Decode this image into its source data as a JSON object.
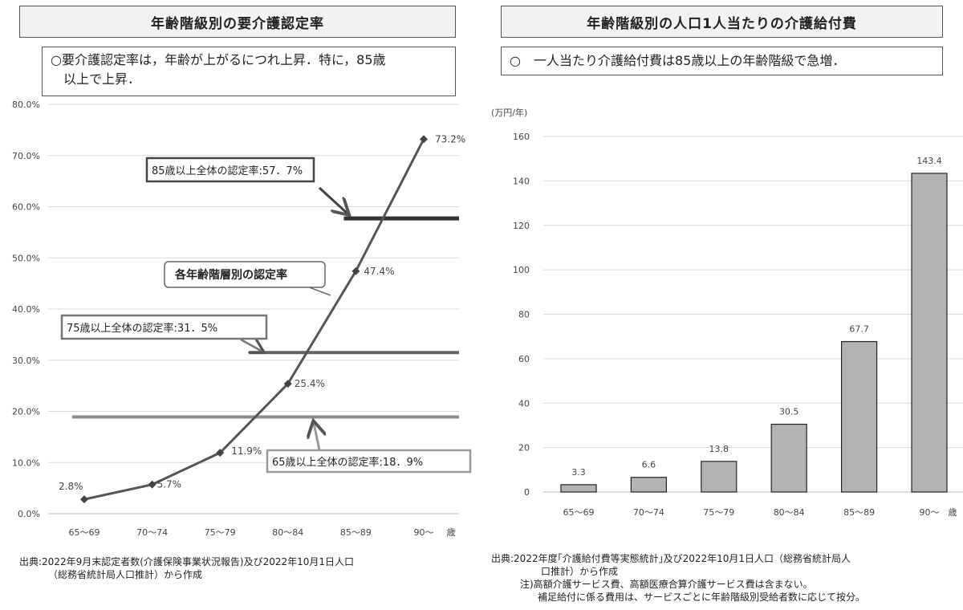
{
  "left": {
    "title": "年齢階級別の要介護認定率",
    "summary_line1": "○要介護認定率は，年齢が上がるにつれ上昇．特に，85歳",
    "summary_line2": "以上で上昇．",
    "annotations": {
      "over85": "85歳以上全体の認定率:57．7%",
      "each_group": "各年齢階層別の認定率",
      "over75": "75歳以上全体の認定率:31．5%",
      "over65": "65歳以上全体の認定率:18．9%"
    },
    "source": [
      "出典:2022年9月末認定者数(介護保険事業状況報告)及び2022年10月1日人口",
      "（総務省統計局人口推計）から作成"
    ]
  },
  "right": {
    "title": "年齢階級別の人口1人当たりの介護給付費",
    "summary": "○　一人当たり介護給付費は85歳以上の年齢階級で急増．",
    "unit_label": "(万円/年)",
    "source": [
      "出典:2022年度｢介護給付費等実態統計｣及び2022年10月1日人口（総務省統計局人",
      "口推計）から作成",
      "注)高額介護サービス費、高額医療合算介護サービス費は含まない。",
      "補足給付に係る費用は、サービスごとに年齢階級別受給者数に応じて按分。"
    ]
  },
  "chart_data": [
    {
      "type": "line",
      "categories": [
        "65～69",
        "70～74",
        "75～79",
        "80～84",
        "85～89",
        "90～"
      ],
      "x_unit": "歳",
      "y_ticks": [
        "0.0%",
        "10.0%",
        "20.0%",
        "30.0%",
        "40.0%",
        "50.0%",
        "60.0%",
        "70.0%",
        "80.0%"
      ],
      "ylim": [
        0,
        80
      ],
      "grid": true,
      "series": [
        {
          "values": [
            2.8,
            5.7,
            11.9,
            25.4,
            47.4,
            73.2
          ],
          "labels": [
            "2.8%",
            "5.7%",
            "11.9%",
            "25.4%",
            "47.4%",
            "73.2%"
          ]
        }
      ],
      "reference_lines": [
        {
          "value": 57.7,
          "from_category": 4,
          "to_category": 5
        },
        {
          "value": 31.5,
          "from_category": 2.6,
          "to_category": 5
        },
        {
          "value": 18.9,
          "from_category": 0,
          "to_category": 5
        }
      ],
      "line_color": "#555555",
      "reference_colors": [
        "#333333",
        "#666666",
        "#8c8c8c"
      ]
    },
    {
      "type": "bar",
      "categories": [
        "65～69",
        "70～74",
        "75～79",
        "80～84",
        "85～89",
        "90～"
      ],
      "x_unit": "歳",
      "values": [
        3.3,
        6.6,
        13.8,
        30.5,
        67.7,
        143.4
      ],
      "labels": [
        "3.3",
        "6.6",
        "13.8",
        "30.5",
        "67.7",
        "143.4"
      ],
      "y_ticks": [
        "0",
        "20",
        "40",
        "60",
        "80",
        "100",
        "120",
        "140",
        "160"
      ],
      "ylim": [
        0,
        160
      ],
      "grid": true,
      "bar_color": "#b3b3b3"
    }
  ]
}
